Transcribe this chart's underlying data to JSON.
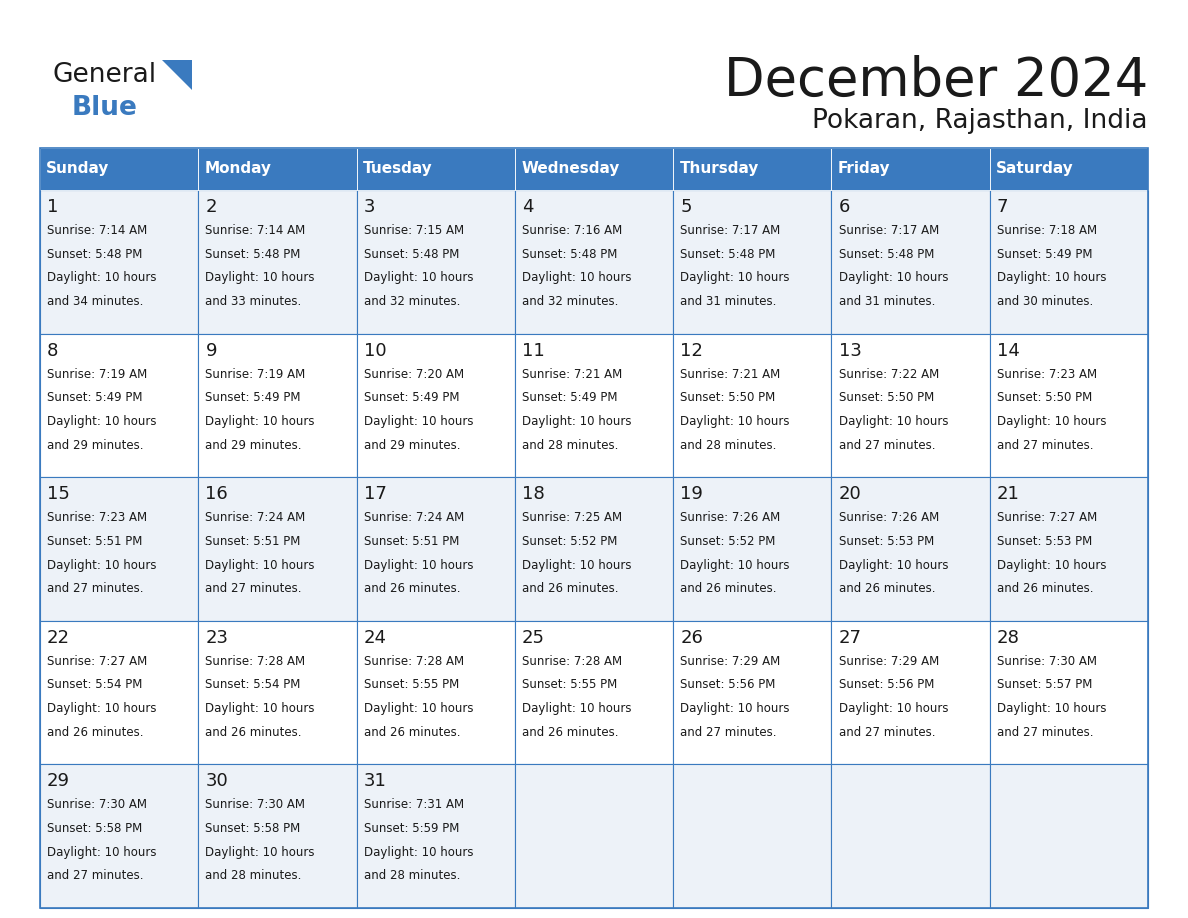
{
  "title": "December 2024",
  "subtitle": "Pokaran, Rajasthan, India",
  "header_color": "#3a7abf",
  "header_text_color": "#ffffff",
  "border_color": "#3a7abf",
  "days_of_week": [
    "Sunday",
    "Monday",
    "Tuesday",
    "Wednesday",
    "Thursday",
    "Friday",
    "Saturday"
  ],
  "weeks": [
    [
      {
        "day": "1",
        "sunrise": "7:14 AM",
        "sunset": "5:48 PM",
        "dl1": "Daylight: 10 hours",
        "dl2": "and 34 minutes."
      },
      {
        "day": "2",
        "sunrise": "7:14 AM",
        "sunset": "5:48 PM",
        "dl1": "Daylight: 10 hours",
        "dl2": "and 33 minutes."
      },
      {
        "day": "3",
        "sunrise": "7:15 AM",
        "sunset": "5:48 PM",
        "dl1": "Daylight: 10 hours",
        "dl2": "and 32 minutes."
      },
      {
        "day": "4",
        "sunrise": "7:16 AM",
        "sunset": "5:48 PM",
        "dl1": "Daylight: 10 hours",
        "dl2": "and 32 minutes."
      },
      {
        "day": "5",
        "sunrise": "7:17 AM",
        "sunset": "5:48 PM",
        "dl1": "Daylight: 10 hours",
        "dl2": "and 31 minutes."
      },
      {
        "day": "6",
        "sunrise": "7:17 AM",
        "sunset": "5:48 PM",
        "dl1": "Daylight: 10 hours",
        "dl2": "and 31 minutes."
      },
      {
        "day": "7",
        "sunrise": "7:18 AM",
        "sunset": "5:49 PM",
        "dl1": "Daylight: 10 hours",
        "dl2": "and 30 minutes."
      }
    ],
    [
      {
        "day": "8",
        "sunrise": "7:19 AM",
        "sunset": "5:49 PM",
        "dl1": "Daylight: 10 hours",
        "dl2": "and 29 minutes."
      },
      {
        "day": "9",
        "sunrise": "7:19 AM",
        "sunset": "5:49 PM",
        "dl1": "Daylight: 10 hours",
        "dl2": "and 29 minutes."
      },
      {
        "day": "10",
        "sunrise": "7:20 AM",
        "sunset": "5:49 PM",
        "dl1": "Daylight: 10 hours",
        "dl2": "and 29 minutes."
      },
      {
        "day": "11",
        "sunrise": "7:21 AM",
        "sunset": "5:49 PM",
        "dl1": "Daylight: 10 hours",
        "dl2": "and 28 minutes."
      },
      {
        "day": "12",
        "sunrise": "7:21 AM",
        "sunset": "5:50 PM",
        "dl1": "Daylight: 10 hours",
        "dl2": "and 28 minutes."
      },
      {
        "day": "13",
        "sunrise": "7:22 AM",
        "sunset": "5:50 PM",
        "dl1": "Daylight: 10 hours",
        "dl2": "and 27 minutes."
      },
      {
        "day": "14",
        "sunrise": "7:23 AM",
        "sunset": "5:50 PM",
        "dl1": "Daylight: 10 hours",
        "dl2": "and 27 minutes."
      }
    ],
    [
      {
        "day": "15",
        "sunrise": "7:23 AM",
        "sunset": "5:51 PM",
        "dl1": "Daylight: 10 hours",
        "dl2": "and 27 minutes."
      },
      {
        "day": "16",
        "sunrise": "7:24 AM",
        "sunset": "5:51 PM",
        "dl1": "Daylight: 10 hours",
        "dl2": "and 27 minutes."
      },
      {
        "day": "17",
        "sunrise": "7:24 AM",
        "sunset": "5:51 PM",
        "dl1": "Daylight: 10 hours",
        "dl2": "and 26 minutes."
      },
      {
        "day": "18",
        "sunrise": "7:25 AM",
        "sunset": "5:52 PM",
        "dl1": "Daylight: 10 hours",
        "dl2": "and 26 minutes."
      },
      {
        "day": "19",
        "sunrise": "7:26 AM",
        "sunset": "5:52 PM",
        "dl1": "Daylight: 10 hours",
        "dl2": "and 26 minutes."
      },
      {
        "day": "20",
        "sunrise": "7:26 AM",
        "sunset": "5:53 PM",
        "dl1": "Daylight: 10 hours",
        "dl2": "and 26 minutes."
      },
      {
        "day": "21",
        "sunrise": "7:27 AM",
        "sunset": "5:53 PM",
        "dl1": "Daylight: 10 hours",
        "dl2": "and 26 minutes."
      }
    ],
    [
      {
        "day": "22",
        "sunrise": "7:27 AM",
        "sunset": "5:54 PM",
        "dl1": "Daylight: 10 hours",
        "dl2": "and 26 minutes."
      },
      {
        "day": "23",
        "sunrise": "7:28 AM",
        "sunset": "5:54 PM",
        "dl1": "Daylight: 10 hours",
        "dl2": "and 26 minutes."
      },
      {
        "day": "24",
        "sunrise": "7:28 AM",
        "sunset": "5:55 PM",
        "dl1": "Daylight: 10 hours",
        "dl2": "and 26 minutes."
      },
      {
        "day": "25",
        "sunrise": "7:28 AM",
        "sunset": "5:55 PM",
        "dl1": "Daylight: 10 hours",
        "dl2": "and 26 minutes."
      },
      {
        "day": "26",
        "sunrise": "7:29 AM",
        "sunset": "5:56 PM",
        "dl1": "Daylight: 10 hours",
        "dl2": "and 27 minutes."
      },
      {
        "day": "27",
        "sunrise": "7:29 AM",
        "sunset": "5:56 PM",
        "dl1": "Daylight: 10 hours",
        "dl2": "and 27 minutes."
      },
      {
        "day": "28",
        "sunrise": "7:30 AM",
        "sunset": "5:57 PM",
        "dl1": "Daylight: 10 hours",
        "dl2": "and 27 minutes."
      }
    ],
    [
      {
        "day": "29",
        "sunrise": "7:30 AM",
        "sunset": "5:58 PM",
        "dl1": "Daylight: 10 hours",
        "dl2": "and 27 minutes."
      },
      {
        "day": "30",
        "sunrise": "7:30 AM",
        "sunset": "5:58 PM",
        "dl1": "Daylight: 10 hours",
        "dl2": "and 28 minutes."
      },
      {
        "day": "31",
        "sunrise": "7:31 AM",
        "sunset": "5:59 PM",
        "dl1": "Daylight: 10 hours",
        "dl2": "and 28 minutes."
      },
      null,
      null,
      null,
      null
    ]
  ],
  "logo_general_color": "#1a1a1a",
  "logo_blue_color": "#3a7abf",
  "logo_triangle_color": "#3a7abf",
  "title_color": "#1a1a1a",
  "cell_text_color": "#1a1a1a",
  "row_colors": [
    "#edf2f8",
    "#ffffff"
  ]
}
